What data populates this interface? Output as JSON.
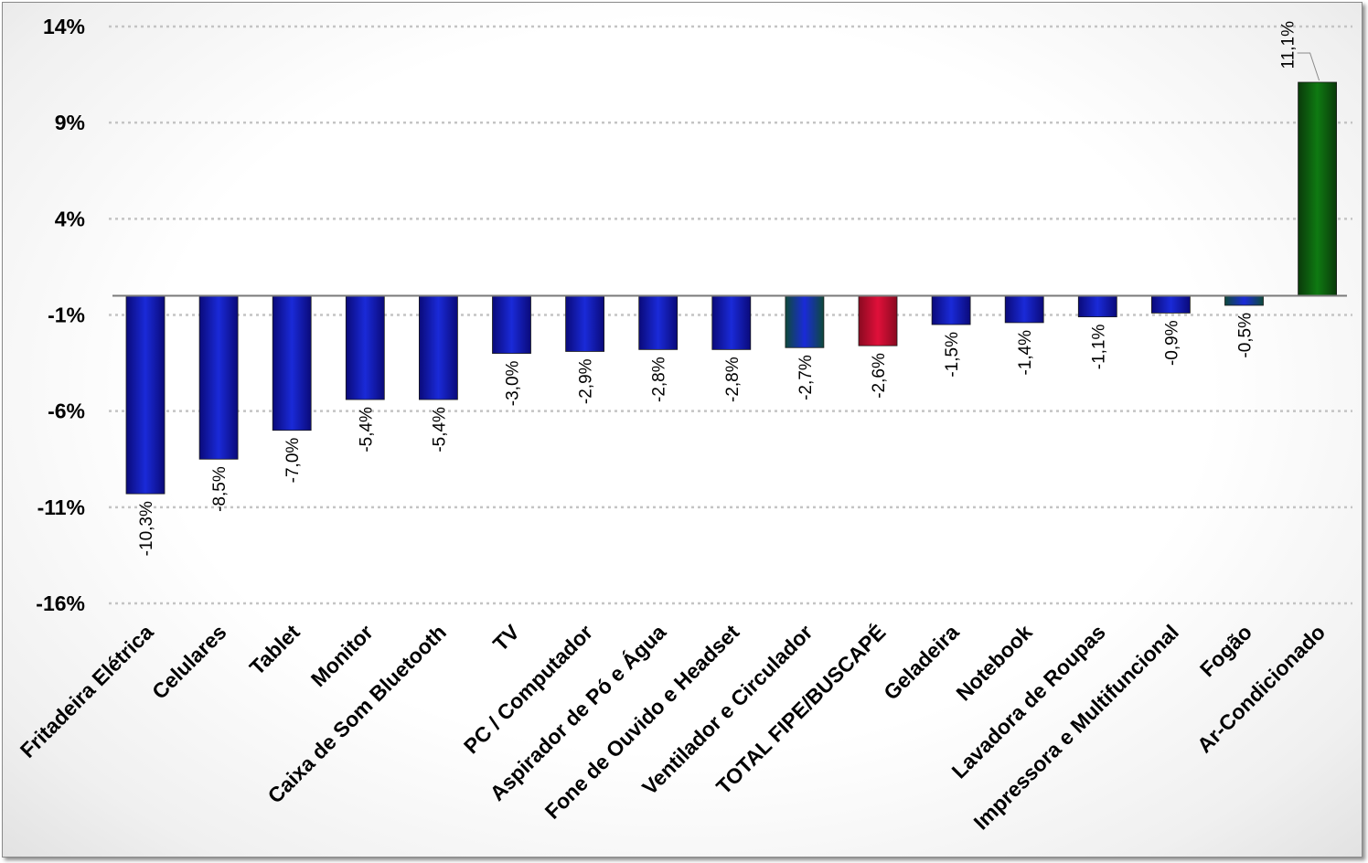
{
  "chart_data": {
    "type": "bar",
    "categories": [
      "Fritadeira Elétrica",
      "Celulares",
      "Tablet",
      "Monitor",
      "Caixa de Som Bluetooth",
      "TV",
      "PC / Computador",
      "Aspirador de Pó e Água",
      "Fone de Ouvido e Headset",
      "Ventilador e Circulador",
      "TOTAL FIPE/BUSCAPÉ",
      "Geladeira",
      "Notebook",
      "Lavadora de Roupas",
      "Impressora e Multifuncional",
      "Fogão",
      "Ar-Condicionado"
    ],
    "values": [
      -10.3,
      -8.5,
      -7.0,
      -5.4,
      -5.4,
      -3.0,
      -2.9,
      -2.8,
      -2.8,
      -2.7,
      -2.6,
      -1.5,
      -1.4,
      -1.1,
      -0.9,
      -0.5,
      11.1
    ],
    "data_labels": [
      "-10,3%",
      "-8,5%",
      "-7,0%",
      "-5,4%",
      "-5,4%",
      "-3,0%",
      "-2,9%",
      "-2,8%",
      "-2,8%",
      "-2,7%",
      "-2,6%",
      "-1,5%",
      "-1,4%",
      "-1,1%",
      "-0,9%",
      "-0,5%",
      "11,1%"
    ],
    "bar_colors": [
      "#1a2ad8",
      "#1a2ad8",
      "#1a2ad8",
      "#1a2ad8",
      "#1a2ad8",
      "#1a2ad8",
      "#1a2ad8",
      "#1a2ad8",
      "#1a2ad8",
      "#1a2ad8",
      "#e0103a",
      "#1a2ad8",
      "#1a2ad8",
      "#1a2ad8",
      "#1a2ad8",
      "#1a2ad8",
      "#0f7a12"
    ],
    "bar_edge_colors": [
      "#0a0a7a",
      "#0a0a7a",
      "#0a0a7a",
      "#0a0a7a",
      "#0a0a7a",
      "#0a0a7a",
      "#0a0a7a",
      "#0a0a7a",
      "#0a0a7a",
      "#0e4a3a",
      "#8a0a20",
      "#0a0a7a",
      "#0a0a7a",
      "#0a0a7a",
      "#0a0a7a",
      "#0e4a3a",
      "#0a3a0a"
    ],
    "yticks": [
      14,
      9,
      4,
      -1,
      -6,
      -11,
      -16
    ],
    "ytick_labels": [
      "14%",
      "9%",
      "4%",
      "-1%",
      "-6%",
      "-11%",
      "-16%"
    ],
    "ylim": [
      -16,
      14
    ],
    "grid": true,
    "xlabel": "",
    "ylabel": "",
    "title": ""
  }
}
